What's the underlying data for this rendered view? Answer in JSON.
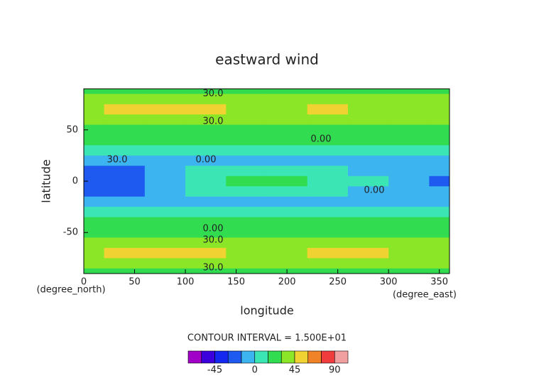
{
  "chart_data": {
    "type": "contour",
    "title": "eastward wind",
    "x_label": "longitude",
    "y_label": "latitude",
    "x_unit": "(degree_east)",
    "y_unit": "(degree_north)",
    "note": "CONTOUR INTERVAL = 1.500E+01",
    "x": [
      0,
      40,
      80,
      120,
      160,
      200,
      240,
      280,
      320,
      360
    ],
    "y": [
      90,
      80,
      70,
      60,
      50,
      40,
      30,
      20,
      10,
      0,
      -10,
      -20,
      -30,
      -40,
      -50,
      -60,
      -70,
      -80,
      -90
    ],
    "values": [
      [
        20,
        20,
        20,
        20,
        20,
        20,
        20,
        20,
        20,
        20
      ],
      [
        30,
        30,
        32,
        30,
        30,
        30,
        30,
        30,
        30,
        30
      ],
      [
        38,
        48,
        50,
        46,
        38,
        40,
        46,
        44,
        40,
        38
      ],
      [
        35,
        35,
        36,
        35,
        35,
        35,
        35,
        35,
        35,
        35
      ],
      [
        25,
        25,
        25,
        25,
        25,
        25,
        25,
        25,
        25,
        25
      ],
      [
        15,
        15,
        15,
        15,
        15,
        15,
        15,
        15,
        15,
        15
      ],
      [
        5,
        5,
        5,
        5,
        5,
        5,
        5,
        5,
        5,
        5
      ],
      [
        -10,
        -10,
        -8,
        -5,
        -3,
        -5,
        -8,
        -10,
        -10,
        -10
      ],
      [
        -20,
        -20,
        -10,
        5,
        8,
        5,
        2,
        -5,
        -10,
        -12
      ],
      [
        -25,
        -25,
        -5,
        10,
        20,
        18,
        12,
        5,
        -5,
        -20
      ],
      [
        -20,
        -20,
        -10,
        5,
        10,
        8,
        3,
        -5,
        -10,
        -12
      ],
      [
        -10,
        -10,
        -8,
        -5,
        -3,
        -5,
        -8,
        -10,
        -10,
        -10
      ],
      [
        5,
        5,
        5,
        5,
        5,
        5,
        5,
        5,
        5,
        5
      ],
      [
        15,
        15,
        15,
        15,
        15,
        15,
        15,
        15,
        15,
        15
      ],
      [
        25,
        25,
        25,
        25,
        25,
        25,
        25,
        25,
        25,
        25
      ],
      [
        35,
        35,
        35,
        35,
        35,
        35,
        35,
        35,
        35,
        35
      ],
      [
        38,
        46,
        50,
        46,
        38,
        42,
        48,
        48,
        44,
        38
      ],
      [
        30,
        30,
        30,
        30,
        30,
        30,
        30,
        30,
        30,
        30
      ],
      [
        20,
        20,
        20,
        20,
        20,
        20,
        20,
        20,
        20,
        20
      ]
    ],
    "levels": [
      -75,
      -60,
      -45,
      -30,
      -15,
      0,
      15,
      30,
      45,
      60,
      75,
      90,
      105
    ],
    "colors": [
      "#a000c8",
      "#3c00dc",
      "#1428f0",
      "#1e5af0",
      "#3cb4f0",
      "#3ce6b4",
      "#32dc50",
      "#8ce628",
      "#f0d232",
      "#f08228",
      "#f03c3c",
      "#f0a0a0"
    ],
    "colorbar_ticks": [
      -45,
      0,
      45,
      90
    ],
    "contour_labels": [
      "30.0",
      "30.0",
      "0.00",
      "30.0",
      "0.00",
      "0.00",
      "0.00",
      "30.0",
      "30.0"
    ],
    "xlim": [
      0,
      360
    ],
    "ylim": [
      -90,
      90
    ],
    "xticks": [
      0,
      50,
      100,
      150,
      200,
      250,
      300,
      350
    ],
    "yticks": [
      -50,
      0,
      50
    ]
  }
}
